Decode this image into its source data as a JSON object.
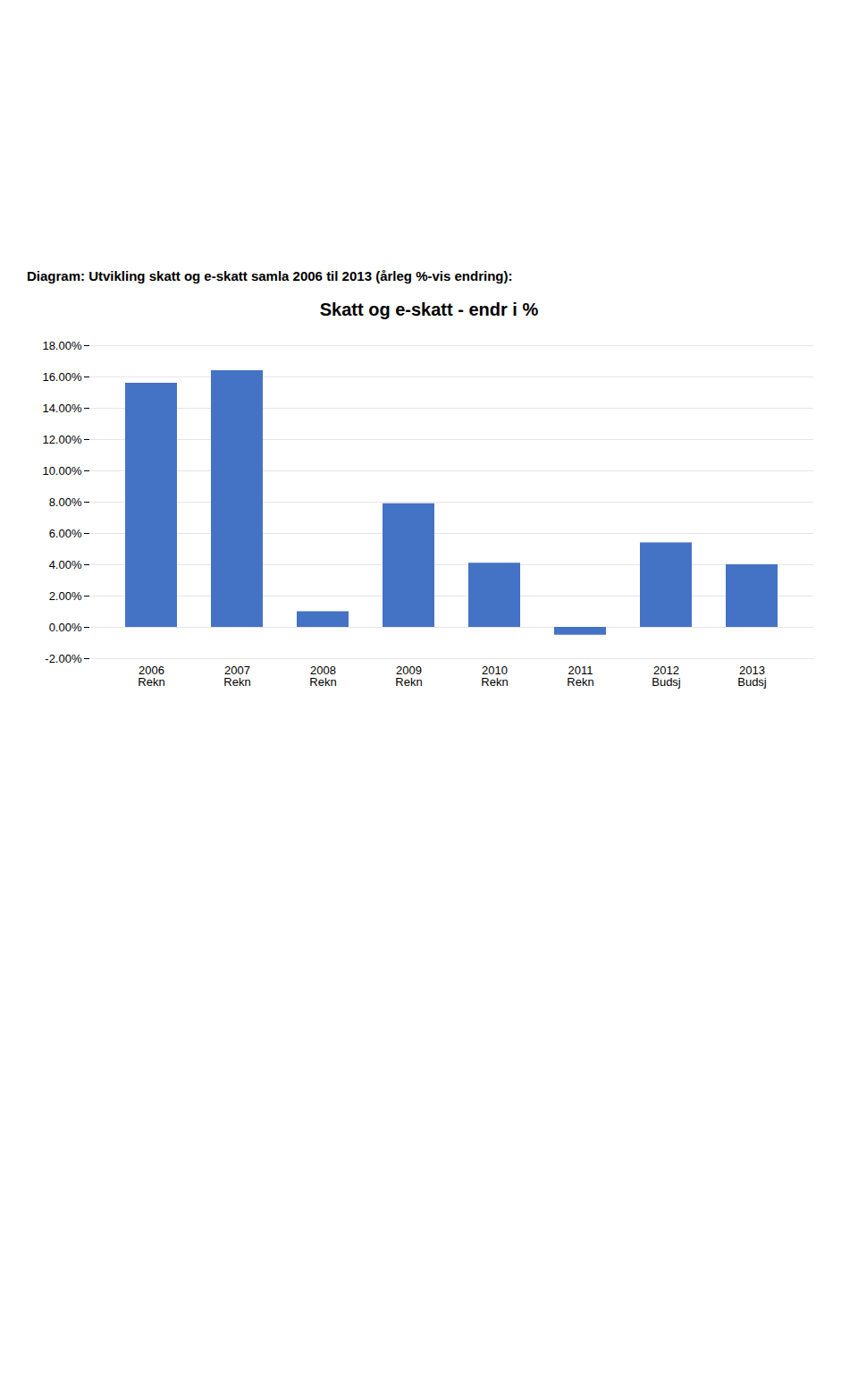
{
  "chart_data": {
    "type": "bar",
    "subtitle": "Diagram: Utvikling skatt og e-skatt samla 2006 til 2013 (årleg %-vis endring):",
    "title": "Skatt og e-skatt - endr i %",
    "categories": [
      "2006\nRekn",
      "2007\nRekn",
      "2008\nRekn",
      "2009\nRekn",
      "2010\nRekn",
      "2011\nRekn",
      "2012\nBudsj",
      "2013\nBudsj"
    ],
    "values": [
      15.6,
      16.4,
      1.0,
      7.9,
      4.1,
      -0.5,
      5.4,
      4.0
    ],
    "color": "#4472C4",
    "ylim": [
      -2.0,
      18.0
    ],
    "yticks": [
      {
        "value": -2.0,
        "label": "-2.00%"
      },
      {
        "value": 0.0,
        "label": "0.00%"
      },
      {
        "value": 2.0,
        "label": "2.00%"
      },
      {
        "value": 4.0,
        "label": "4.00%"
      },
      {
        "value": 6.0,
        "label": "6.00%"
      },
      {
        "value": 8.0,
        "label": "8.00%"
      },
      {
        "value": 10.0,
        "label": "10.00%"
      },
      {
        "value": 12.0,
        "label": "12.00%"
      },
      {
        "value": 14.0,
        "label": "14.00%"
      },
      {
        "value": 16.0,
        "label": "16.00%"
      },
      {
        "value": 18.0,
        "label": "18.00%"
      }
    ],
    "grid": true
  }
}
